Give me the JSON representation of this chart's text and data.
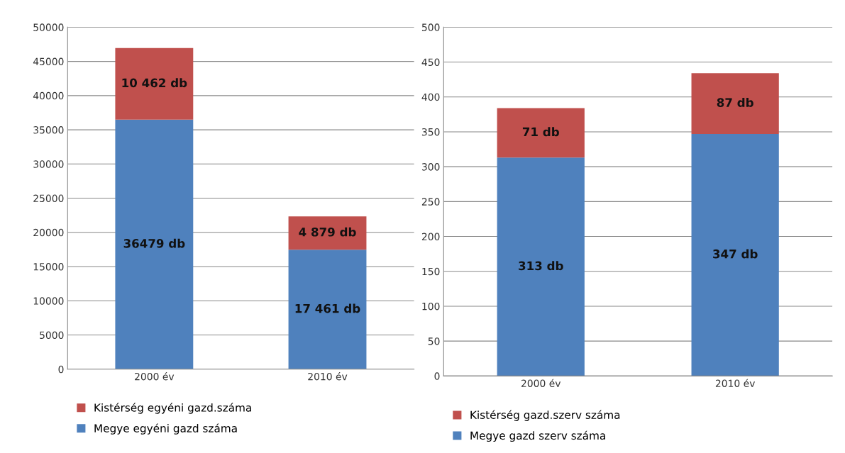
{
  "chart_data": [
    {
      "type": "bar",
      "stacked": true,
      "categories": [
        "2000 év",
        "2010 év"
      ],
      "series": [
        {
          "name": "Megye egyéni gazd száma",
          "color": "#4f81bd",
          "values": [
            36479,
            17461
          ],
          "value_labels": [
            "36479 db",
            "17 461 db"
          ]
        },
        {
          "name": "Kistérség egyéni gazd.száma",
          "color": "#c0504d",
          "values": [
            10462,
            4879
          ],
          "value_labels": [
            "10 462 db",
            "4 879 db"
          ]
        }
      ],
      "ylim": [
        0,
        50000
      ],
      "yticks": [
        0,
        5000,
        10000,
        15000,
        20000,
        25000,
        30000,
        35000,
        40000,
        45000,
        50000
      ],
      "grid": "y",
      "legend": "bottom"
    },
    {
      "type": "bar",
      "stacked": true,
      "categories": [
        "2000 év",
        "2010 év"
      ],
      "series": [
        {
          "name": "Megye gazd szerv száma",
          "color": "#4f81bd",
          "values": [
            313,
            347
          ],
          "value_labels": [
            "313 db",
            "347 db"
          ]
        },
        {
          "name": "Kistérség gazd.szerv száma",
          "color": "#c0504d",
          "values": [
            71,
            87
          ],
          "value_labels": [
            "71 db",
            "87 db"
          ]
        }
      ],
      "ylim": [
        0,
        500
      ],
      "yticks": [
        0,
        50,
        100,
        150,
        200,
        250,
        300,
        350,
        400,
        450,
        500
      ],
      "grid": "y",
      "legend": "bottom"
    }
  ]
}
